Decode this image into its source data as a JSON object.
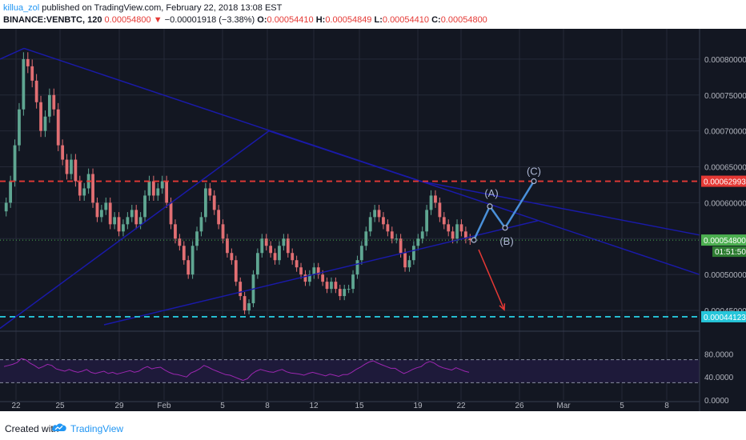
{
  "header": {
    "username": "killua_zol",
    "published": " published on TradingView.com, February 22, 2018 13:08 EST",
    "symbol": "BINANCE:VENBTC, 120",
    "last": "0.00054800",
    "down_arrow": "▼",
    "change": "−0.00001918 (−3.38%)",
    "o_label": "O:",
    "o_val": "0.00054410",
    "h_label": "H:",
    "h_val": "0.00054849",
    "l_label": "L:",
    "l_val": "0.00054410",
    "c_label": "C:",
    "c_val": "0.00054800"
  },
  "footer": {
    "created_with": "Created with",
    "brand": "TradingView"
  },
  "colors": {
    "background": "#131722",
    "up": "#5fa692",
    "down": "#e26f73",
    "trendline": "#1a1aa8",
    "resistance": "#e53935",
    "support": "#26c6da",
    "projection": "#4a90d9",
    "forecast": "#e53935",
    "rsi": "#9c27b0"
  },
  "chart_data": [
    {
      "type": "candlestick",
      "symbol": "BINANCE:VENBTC",
      "interval": "120",
      "x_ticks": [
        "22",
        "25",
        "29",
        "Feb",
        "5",
        "8",
        "12",
        "15",
        "19",
        "22",
        "26",
        "Mar",
        "5",
        "8"
      ],
      "y_ticks": [
        "0.00080000",
        "0.00075000",
        "0.00070000",
        "0.00065000",
        "0.00060000",
        "0.00055000",
        "0.00050000",
        "0.00045000"
      ],
      "ylim": [
        0.00043,
        0.00084
      ],
      "grid": true,
      "price_lines": [
        {
          "value": 0.00062993,
          "label": "0.00062993",
          "style": "dashed",
          "color": "#e53935"
        },
        {
          "value": 0.000548,
          "label": "0.00054800",
          "style": "dotted",
          "color": "#4caf50"
        },
        {
          "value": 0.00044123,
          "label": "0.00044123",
          "style": "dashed",
          "color": "#26c6da"
        }
      ],
      "countdown": "01:51:50",
      "close_series": [
        0.0006,
        0.00063,
        0.00068,
        0.00073,
        0.0008,
        0.00079,
        0.00077,
        0.00074,
        0.0007,
        0.00072,
        0.00075,
        0.00073,
        0.00068,
        0.00066,
        0.00064,
        0.00066,
        0.00063,
        0.00061,
        0.00062,
        0.00064,
        0.0006,
        0.00058,
        0.00059,
        0.0006,
        0.00057,
        0.00058,
        0.00056,
        0.00057,
        0.00058,
        0.00059,
        0.00057,
        0.00058,
        0.00061,
        0.00063,
        0.00061,
        0.00062,
        0.00063,
        0.0006,
        0.00057,
        0.00055,
        0.00054,
        0.00052,
        0.0005,
        0.00054,
        0.00056,
        0.00058,
        0.00062,
        0.00061,
        0.00059,
        0.00057,
        0.00055,
        0.00053,
        0.00052,
        0.00049,
        0.00047,
        0.00045,
        0.00046,
        0.0005,
        0.00053,
        0.00055,
        0.00054,
        0.00053,
        0.00052,
        0.00054,
        0.00055,
        0.00053,
        0.00052,
        0.00051,
        0.0005,
        0.00049,
        0.0005,
        0.00051,
        0.0005,
        0.00049,
        0.00048,
        0.00049,
        0.00048,
        0.00047,
        0.00048,
        0.00048,
        0.0005,
        0.00052,
        0.00054,
        0.00056,
        0.00058,
        0.00059,
        0.00058,
        0.00057,
        0.00056,
        0.00055,
        0.00055,
        0.00053,
        0.00051,
        0.00052,
        0.00054,
        0.00055,
        0.00056,
        0.00059,
        0.00061,
        0.0006,
        0.00058,
        0.00057,
        0.00056,
        0.00055,
        0.00057,
        0.00056,
        0.00055,
        0.000548
      ],
      "drawings": [
        {
          "type": "wave_projection",
          "labels": [
            "(A)",
            "(B)",
            "(C)"
          ],
          "points": [
            0.000548,
            0.000595,
            0.000565,
            0.00063
          ]
        },
        {
          "type": "arrow",
          "direction": "down",
          "from": 0.000548,
          "to": 0.000442
        }
      ]
    },
    {
      "type": "line",
      "name": "RSI",
      "y_ticks": [
        "80.0000",
        "40.0000",
        "0.0000"
      ],
      "levels": [
        70,
        30
      ],
      "ylim": [
        0,
        100
      ],
      "values": [
        58,
        60,
        62,
        65,
        72,
        70,
        64,
        60,
        55,
        58,
        62,
        60,
        54,
        52,
        50,
        53,
        50,
        48,
        50,
        53,
        48,
        46,
        48,
        50,
        46,
        48,
        45,
        47,
        49,
        51,
        48,
        50,
        55,
        58,
        54,
        56,
        57,
        52,
        48,
        45,
        44,
        42,
        40,
        47,
        50,
        54,
        60,
        57,
        53,
        50,
        47,
        44,
        43,
        40,
        37,
        34,
        37,
        45,
        50,
        53,
        51,
        49,
        48,
        51,
        53,
        49,
        47,
        46,
        45,
        43,
        46,
        48,
        46,
        44,
        42,
        45,
        43,
        41,
        44,
        44,
        48,
        53,
        57,
        62,
        66,
        68,
        64,
        61,
        58,
        55,
        55,
        50,
        46,
        49,
        53,
        56,
        58,
        64,
        67,
        64,
        59,
        56,
        54,
        52,
        56,
        53,
        50,
        48
      ]
    }
  ]
}
